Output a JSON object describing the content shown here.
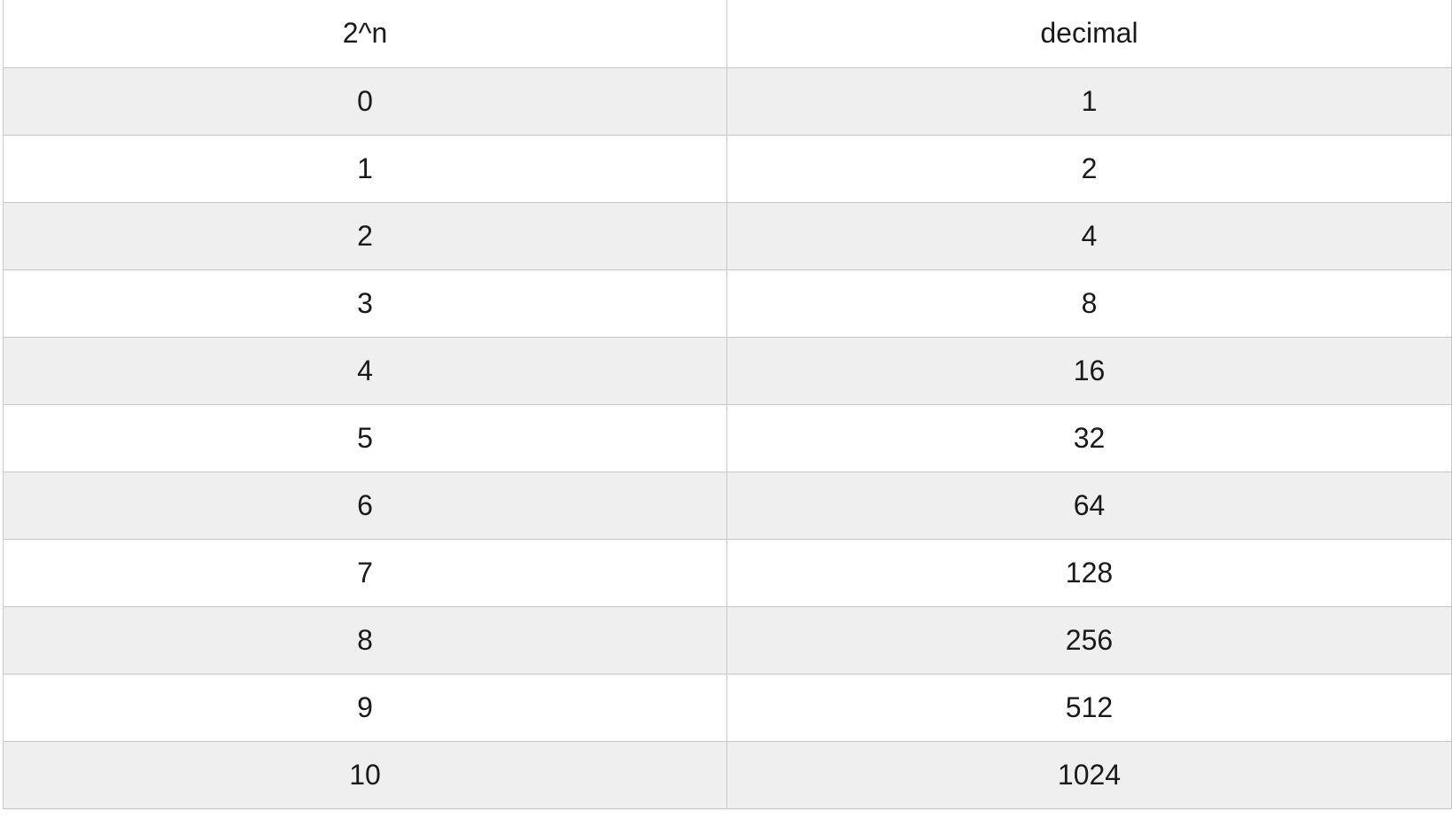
{
  "table": {
    "headers": [
      "2^n",
      "decimal"
    ],
    "rows": [
      [
        "0",
        "1"
      ],
      [
        "1",
        "2"
      ],
      [
        "2",
        "4"
      ],
      [
        "3",
        "8"
      ],
      [
        "4",
        "16"
      ],
      [
        "5",
        "32"
      ],
      [
        "6",
        "64"
      ],
      [
        "7",
        "128"
      ],
      [
        "8",
        "256"
      ],
      [
        "9",
        "512"
      ],
      [
        "10",
        "1024"
      ]
    ]
  },
  "colors": {
    "stripe": "#efefef",
    "background": "#ffffff",
    "grid": "#c8c8c8",
    "text": "#1a1a1a"
  }
}
